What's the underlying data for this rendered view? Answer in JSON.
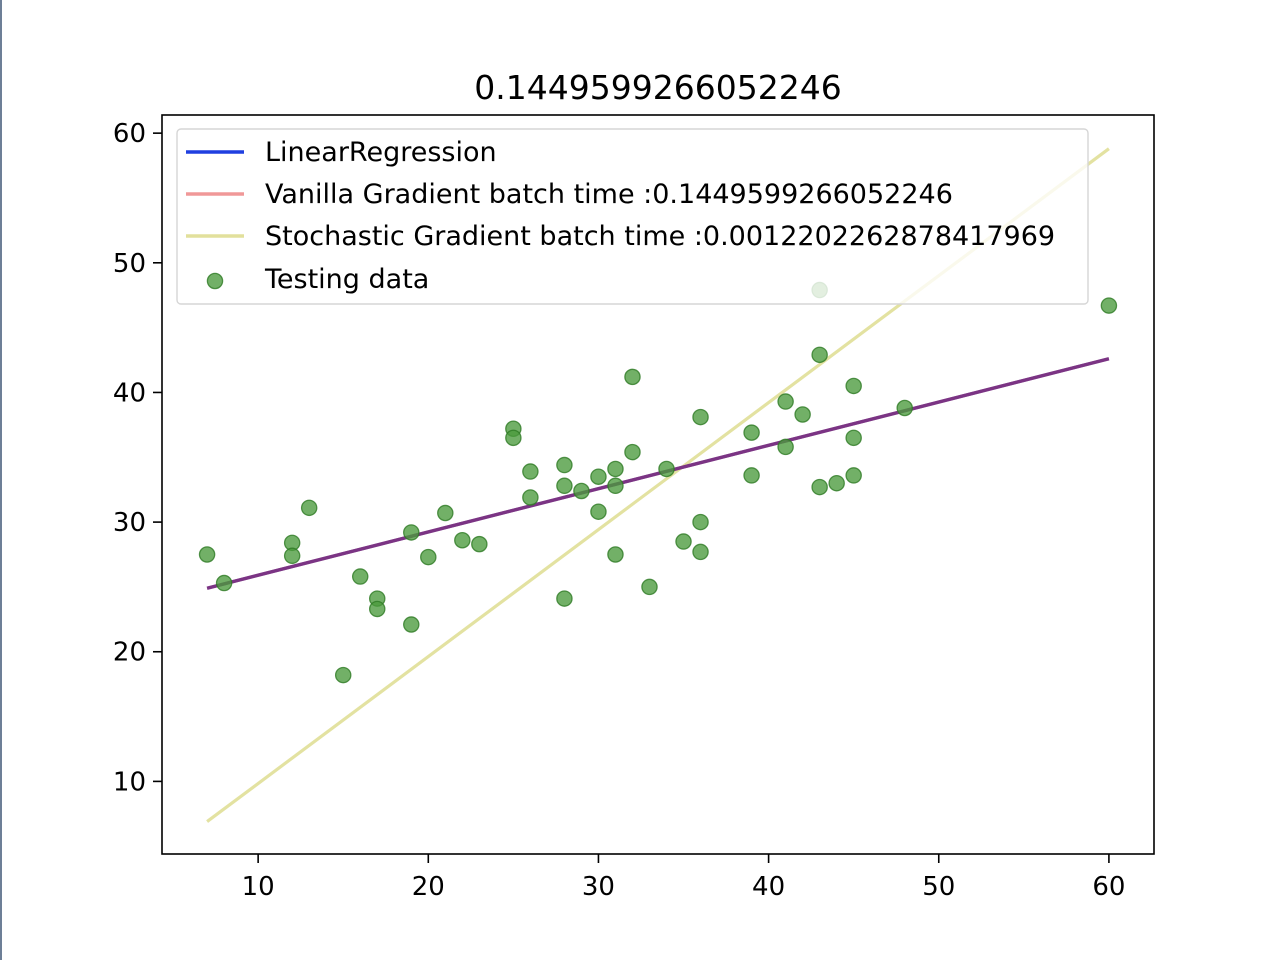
{
  "chart_data": {
    "type": "scatter",
    "title": "0.1449599266052246",
    "xlabel": "",
    "ylabel": "",
    "xlim": [
      4.35,
      62.65
    ],
    "ylim": [
      4.4,
      61.4
    ],
    "xticks": [
      10,
      20,
      30,
      40,
      50,
      60
    ],
    "yticks": [
      10,
      20,
      30,
      40,
      50,
      60
    ],
    "grid": false,
    "legend_position": "top-left",
    "colors": {
      "linear_regression": "#1f3fe0",
      "vanilla_gradient": "#f09898",
      "stochastic_gradient": "#e2e09c",
      "overlap_line": "#7b3484",
      "testing_data": "#4a9a3c",
      "testing_data_edge": "#2e7a24"
    },
    "series": [
      {
        "name": "LinearRegression",
        "kind": "line",
        "x": [
          7,
          60
        ],
        "y": [
          24.9,
          42.6
        ]
      },
      {
        "name": "Vanilla Gradient batch time :0.1449599266052246",
        "kind": "line",
        "x": [
          7,
          60
        ],
        "y": [
          24.9,
          42.6
        ]
      },
      {
        "name": "Stochastic Gradient batch time :0.0012202262878417969",
        "kind": "line",
        "x": [
          7,
          60
        ],
        "y": [
          6.9,
          58.8
        ]
      },
      {
        "name": "Testing data",
        "kind": "scatter",
        "points": [
          [
            7,
            27.5
          ],
          [
            8,
            25.3
          ],
          [
            12,
            28.4
          ],
          [
            12,
            27.4
          ],
          [
            13,
            31.1
          ],
          [
            15,
            18.2
          ],
          [
            16,
            25.8
          ],
          [
            17,
            24.1
          ],
          [
            17,
            23.3
          ],
          [
            19,
            29.2
          ],
          [
            19,
            22.1
          ],
          [
            20,
            27.3
          ],
          [
            21,
            30.7
          ],
          [
            22,
            28.6
          ],
          [
            23,
            28.3
          ],
          [
            25,
            37.2
          ],
          [
            25,
            36.5
          ],
          [
            26,
            33.9
          ],
          [
            26,
            31.9
          ],
          [
            28,
            34.4
          ],
          [
            28,
            32.8
          ],
          [
            28,
            24.1
          ],
          [
            29,
            32.4
          ],
          [
            30,
            33.5
          ],
          [
            30,
            30.8
          ],
          [
            31,
            34.1
          ],
          [
            31,
            32.8
          ],
          [
            31,
            27.5
          ],
          [
            32,
            41.2
          ],
          [
            32,
            35.4
          ],
          [
            33,
            25.0
          ],
          [
            34,
            34.1
          ],
          [
            35,
            28.5
          ],
          [
            36,
            38.1
          ],
          [
            36,
            30.0
          ],
          [
            36,
            27.7
          ],
          [
            39,
            36.9
          ],
          [
            39,
            33.6
          ],
          [
            41,
            39.3
          ],
          [
            41,
            35.8
          ],
          [
            42,
            38.3
          ],
          [
            43,
            47.9
          ],
          [
            43,
            42.9
          ],
          [
            43,
            32.7
          ],
          [
            44,
            33.0
          ],
          [
            45,
            40.5
          ],
          [
            45,
            36.5
          ],
          [
            45,
            33.6
          ],
          [
            48,
            38.8
          ],
          [
            60,
            46.7
          ]
        ]
      }
    ]
  }
}
